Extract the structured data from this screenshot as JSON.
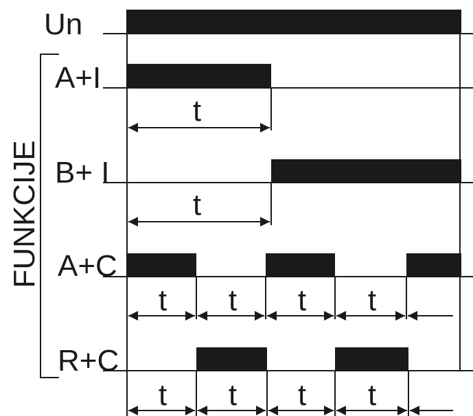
{
  "signals": [
    {
      "label": "Un"
    },
    {
      "label": "A+I"
    },
    {
      "label": "B+ I"
    },
    {
      "label": "A+C"
    },
    {
      "label": "R+C"
    }
  ],
  "group_label": "FUNKCIJE",
  "interval_label": "t",
  "colors": {
    "ink": "#1a1a1a",
    "background": "#ffffff"
  }
}
